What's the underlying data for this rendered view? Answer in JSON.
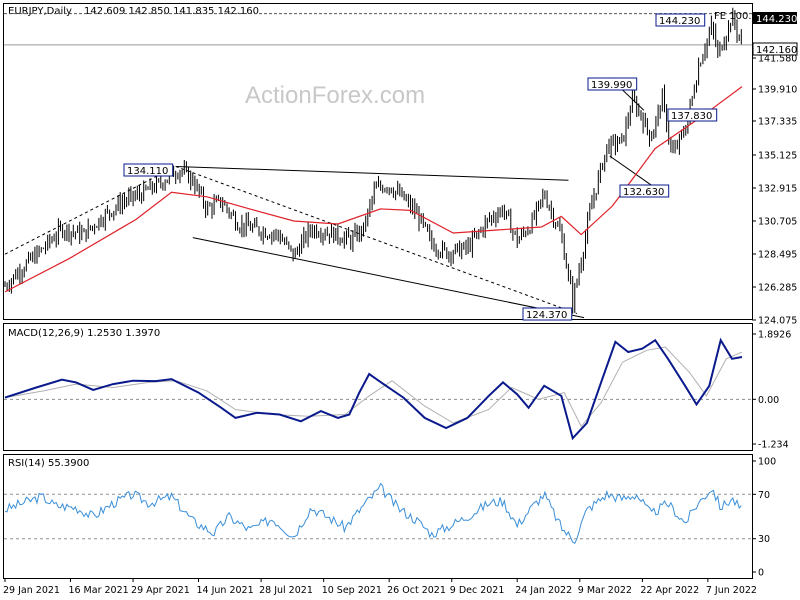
{
  "header": {
    "title": "EURJPY,Daily",
    "ohlc": "142.609 142.850 141.835 142.160"
  },
  "watermark": "ActionForex.com",
  "chart_data": [
    {
      "type": "candlestick",
      "symbol": "EURJPY",
      "timeframe": "Daily",
      "ylim": [
        124.075,
        144.8
      ],
      "y_ticks": [
        "144.230",
        "142.160",
        "141.580",
        "139.910",
        "137.335",
        "135.125",
        "132.915",
        "130.705",
        "128.495",
        "126.285",
        "124.075"
      ],
      "price_boxes": {
        "high": "144.230",
        "last": "142.160"
      },
      "fib_label": "FE 100.0",
      "annotations": [
        "134.110",
        "139.990",
        "137.830",
        "132.630",
        "124.370",
        "144.230"
      ],
      "close_path": [
        [
          "2021-01-29",
          126.2
        ],
        [
          "2021-02-10",
          127.4
        ],
        [
          "2021-02-24",
          128.6
        ],
        [
          "2021-03-10",
          130.0
        ],
        [
          "2021-03-25",
          129.6
        ],
        [
          "2021-04-08",
          130.8
        ],
        [
          "2021-04-22",
          131.8
        ],
        [
          "2021-05-05",
          132.3
        ],
        [
          "2021-05-18",
          133.0
        ],
        [
          "2021-05-26",
          133.6
        ],
        [
          "2021-06-01",
          133.9
        ],
        [
          "2021-06-10",
          133.2
        ],
        [
          "2021-06-20",
          131.3
        ],
        [
          "2021-06-30",
          131.8
        ],
        [
          "2021-07-12",
          130.3
        ],
        [
          "2021-07-26",
          129.9
        ],
        [
          "2021-08-09",
          129.6
        ],
        [
          "2021-08-20",
          128.2
        ],
        [
          "2021-09-01",
          130.0
        ],
        [
          "2021-09-15",
          129.7
        ],
        [
          "2021-09-29",
          129.2
        ],
        [
          "2021-10-08",
          130.0
        ],
        [
          "2021-10-16",
          132.6
        ],
        [
          "2021-10-25",
          132.9
        ],
        [
          "2021-11-05",
          132.0
        ],
        [
          "2021-11-15",
          130.9
        ],
        [
          "2021-11-25",
          129.0
        ],
        [
          "2021-12-05",
          128.4
        ],
        [
          "2021-12-20",
          128.7
        ],
        [
          "2022-01-04",
          130.6
        ],
        [
          "2022-01-14",
          131.3
        ],
        [
          "2022-01-24",
          129.2
        ],
        [
          "2022-02-03",
          130.3
        ],
        [
          "2022-02-12",
          132.3
        ],
        [
          "2022-02-24",
          129.5
        ],
        [
          "2022-03-04",
          125.2
        ],
        [
          "2022-03-10",
          128.0
        ],
        [
          "2022-03-17",
          131.5
        ],
        [
          "2022-03-28",
          135.4
        ],
        [
          "2022-04-08",
          135.8
        ],
        [
          "2022-04-15",
          138.5
        ],
        [
          "2022-04-21",
          137.5
        ],
        [
          "2022-04-28",
          136.0
        ],
        [
          "2022-05-06",
          138.6
        ],
        [
          "2022-05-13",
          134.8
        ],
        [
          "2022-05-23",
          136.8
        ],
        [
          "2022-06-01",
          141.0
        ],
        [
          "2022-06-10",
          143.4
        ],
        [
          "2022-06-14",
          141.5
        ],
        [
          "2022-06-24",
          144.0
        ],
        [
          "2022-07-01",
          142.16
        ]
      ],
      "ma_path": [
        [
          "2021-01-29",
          125.8
        ],
        [
          "2021-03-15",
          128.0
        ],
        [
          "2021-05-01",
          130.6
        ],
        [
          "2021-05-26",
          132.4
        ],
        [
          "2021-06-20",
          132.1
        ],
        [
          "2021-07-20",
          131.3
        ],
        [
          "2021-08-20",
          130.5
        ],
        [
          "2021-09-20",
          130.3
        ],
        [
          "2021-10-20",
          131.3
        ],
        [
          "2021-11-10",
          131.2
        ],
        [
          "2021-12-10",
          129.7
        ],
        [
          "2022-01-10",
          129.9
        ],
        [
          "2022-02-10",
          130.1
        ],
        [
          "2022-02-24",
          130.8
        ],
        [
          "2022-03-10",
          129.6
        ],
        [
          "2022-04-01",
          131.5
        ],
        [
          "2022-05-01",
          135.3
        ],
        [
          "2022-06-01",
          137.3
        ],
        [
          "2022-07-01",
          139.4
        ]
      ],
      "trendlines": [
        {
          "style": "solid",
          "from": [
            "2021-05-29",
            134.11
          ],
          "to": [
            "2022-03-01",
            133.2
          ]
        },
        {
          "style": "solid",
          "from": [
            "2021-06-10",
            129.4
          ],
          "to": [
            "2022-03-12",
            124.1
          ]
        },
        {
          "style": "dashed",
          "from": [
            "2021-01-29",
            128.3
          ],
          "to": [
            "2021-05-29",
            134.11
          ]
        },
        {
          "style": "dashed",
          "from": [
            "2021-05-29",
            134.11
          ],
          "to": [
            "2022-03-07",
            124.37
          ]
        },
        {
          "style": "solid",
          "from": [
            "2022-03-30",
            139.99
          ],
          "to": [
            "2022-04-23",
            137.83
          ]
        },
        {
          "style": "solid",
          "from": [
            "2022-03-30",
            134.8
          ],
          "to": [
            "2022-05-07",
            132.3
          ]
        }
      ],
      "horizontal_lines": [
        144.23,
        142.16
      ]
    },
    {
      "type": "line",
      "indicator": "MACD",
      "label": "MACD(12,26,9) 1.2530 1.3970",
      "ylim": [
        -1.5,
        2.2
      ],
      "y_ticks": [
        "1.8926",
        "0.00",
        "-1.234"
      ],
      "zero_line": 0,
      "macd": [
        [
          "2021-01-29",
          0.05
        ],
        [
          "2021-02-20",
          0.35
        ],
        [
          "2021-03-10",
          0.58
        ],
        [
          "2021-03-20",
          0.5
        ],
        [
          "2021-04-01",
          0.28
        ],
        [
          "2021-04-15",
          0.45
        ],
        [
          "2021-04-29",
          0.55
        ],
        [
          "2021-05-15",
          0.54
        ],
        [
          "2021-05-26",
          0.6
        ],
        [
          "2021-06-14",
          0.2
        ],
        [
          "2021-06-30",
          -0.25
        ],
        [
          "2021-07-10",
          -0.55
        ],
        [
          "2021-07-25",
          -0.4
        ],
        [
          "2021-08-10",
          -0.45
        ],
        [
          "2021-08-25",
          -0.65
        ],
        [
          "2021-09-08",
          -0.35
        ],
        [
          "2021-09-20",
          -0.55
        ],
        [
          "2021-09-28",
          -0.45
        ],
        [
          "2021-10-05",
          0.2
        ],
        [
          "2021-10-12",
          0.75
        ],
        [
          "2021-10-22",
          0.45
        ],
        [
          "2021-11-05",
          0.05
        ],
        [
          "2021-11-20",
          -0.55
        ],
        [
          "2021-12-05",
          -0.85
        ],
        [
          "2021-12-20",
          -0.55
        ],
        [
          "2022-01-04",
          0.1
        ],
        [
          "2022-01-14",
          0.5
        ],
        [
          "2022-01-24",
          0.15
        ],
        [
          "2022-02-01",
          -0.25
        ],
        [
          "2022-02-12",
          0.4
        ],
        [
          "2022-02-24",
          0.1
        ],
        [
          "2022-03-04",
          -1.15
        ],
        [
          "2022-03-14",
          -0.7
        ],
        [
          "2022-03-24",
          0.5
        ],
        [
          "2022-04-03",
          1.7
        ],
        [
          "2022-04-12",
          1.4
        ],
        [
          "2022-04-22",
          1.5
        ],
        [
          "2022-05-01",
          1.75
        ],
        [
          "2022-05-10",
          1.2
        ],
        [
          "2022-05-22",
          0.4
        ],
        [
          "2022-05-30",
          -0.15
        ],
        [
          "2022-06-08",
          0.4
        ],
        [
          "2022-06-16",
          1.75
        ],
        [
          "2022-06-24",
          1.2
        ],
        [
          "2022-07-01",
          1.253
        ]
      ],
      "signal": [
        [
          "2021-01-29",
          0.05
        ],
        [
          "2021-02-25",
          0.25
        ],
        [
          "2021-03-20",
          0.45
        ],
        [
          "2021-04-15",
          0.35
        ],
        [
          "2021-05-10",
          0.5
        ],
        [
          "2021-05-29",
          0.55
        ],
        [
          "2021-06-20",
          0.25
        ],
        [
          "2021-07-10",
          -0.3
        ],
        [
          "2021-08-05",
          -0.45
        ],
        [
          "2021-08-30",
          -0.5
        ],
        [
          "2021-09-25",
          -0.45
        ],
        [
          "2021-10-12",
          0.1
        ],
        [
          "2021-10-28",
          0.55
        ],
        [
          "2021-11-20",
          -0.2
        ],
        [
          "2021-12-10",
          -0.7
        ],
        [
          "2022-01-04",
          -0.3
        ],
        [
          "2022-01-20",
          0.35
        ],
        [
          "2022-02-08",
          0.0
        ],
        [
          "2022-02-26",
          0.2
        ],
        [
          "2022-03-10",
          -0.8
        ],
        [
          "2022-03-24",
          -0.1
        ],
        [
          "2022-04-08",
          1.1
        ],
        [
          "2022-04-25",
          1.45
        ],
        [
          "2022-05-08",
          1.55
        ],
        [
          "2022-05-25",
          0.8
        ],
        [
          "2022-06-06",
          0.1
        ],
        [
          "2022-06-20",
          1.2
        ],
        [
          "2022-07-01",
          1.397
        ]
      ]
    },
    {
      "type": "line",
      "indicator": "RSI",
      "label": "RSI(14) 55.3900",
      "ylim": [
        0,
        100
      ],
      "y_ticks": [
        "100",
        "70",
        "30",
        "0"
      ],
      "levels": [
        70,
        30
      ],
      "rsi": [
        [
          "2021-01-29",
          56
        ],
        [
          "2021-02-10",
          62
        ],
        [
          "2021-02-24",
          68
        ],
        [
          "2021-03-05",
          60
        ],
        [
          "2021-03-20",
          58
        ],
        [
          "2021-04-01",
          50
        ],
        [
          "2021-04-15",
          62
        ],
        [
          "2021-04-29",
          70
        ],
        [
          "2021-05-10",
          62
        ],
        [
          "2021-05-26",
          68
        ],
        [
          "2021-06-10",
          46
        ],
        [
          "2021-06-25",
          35
        ],
        [
          "2021-07-05",
          50
        ],
        [
          "2021-07-20",
          38
        ],
        [
          "2021-08-05",
          48
        ],
        [
          "2021-08-20",
          32
        ],
        [
          "2021-09-01",
          58
        ],
        [
          "2021-09-15",
          48
        ],
        [
          "2021-09-25",
          40
        ],
        [
          "2021-10-08",
          60
        ],
        [
          "2021-10-20",
          76
        ],
        [
          "2021-11-01",
          58
        ],
        [
          "2021-11-15",
          46
        ],
        [
          "2021-11-25",
          34
        ],
        [
          "2021-12-08",
          42
        ],
        [
          "2021-12-20",
          50
        ],
        [
          "2022-01-04",
          62
        ],
        [
          "2022-01-14",
          64
        ],
        [
          "2022-01-24",
          42
        ],
        [
          "2022-02-03",
          58
        ],
        [
          "2022-02-12",
          70
        ],
        [
          "2022-02-24",
          40
        ],
        [
          "2022-03-05",
          28
        ],
        [
          "2022-03-14",
          56
        ],
        [
          "2022-03-28",
          70
        ],
        [
          "2022-04-08",
          66
        ],
        [
          "2022-04-18",
          70
        ],
        [
          "2022-04-28",
          52
        ],
        [
          "2022-05-10",
          62
        ],
        [
          "2022-05-22",
          44
        ],
        [
          "2022-05-30",
          60
        ],
        [
          "2022-06-10",
          76
        ],
        [
          "2022-06-16",
          58
        ],
        [
          "2022-06-24",
          66
        ],
        [
          "2022-07-01",
          55.39
        ]
      ]
    }
  ],
  "x_axis": {
    "ticks": [
      {
        "date": "2021-01-29",
        "label": "29 Jan 2021"
      },
      {
        "date": "2021-03-16",
        "label": "16 Mar 2021"
      },
      {
        "date": "2021-04-29",
        "label": "29 Apr 2021"
      },
      {
        "date": "2021-06-14",
        "label": "14 Jun 2021"
      },
      {
        "date": "2021-07-28",
        "label": "28 Jul 2021"
      },
      {
        "date": "2021-09-10",
        "label": "10 Sep 2021"
      },
      {
        "date": "2021-10-26",
        "label": "26 Oct 2021"
      },
      {
        "date": "2021-12-09",
        "label": "9 Dec 2021"
      },
      {
        "date": "2022-01-24",
        "label": "24 Jan 2022"
      },
      {
        "date": "2022-03-09",
        "label": "9 Mar 2022"
      },
      {
        "date": "2022-04-22",
        "label": "22 Apr 2022"
      },
      {
        "date": "2022-06-07",
        "label": "7 Jun 2022"
      }
    ],
    "start": "2021-01-29",
    "end": "2022-07-01"
  },
  "colors": {
    "price": "#000000",
    "moving_average": "#e0222a",
    "macd": "#0a1a8c",
    "signal": "#b0b0b0",
    "rsi": "#3a8fd9",
    "box_border": "#0a1a8c",
    "grid_dash": "#909090"
  }
}
